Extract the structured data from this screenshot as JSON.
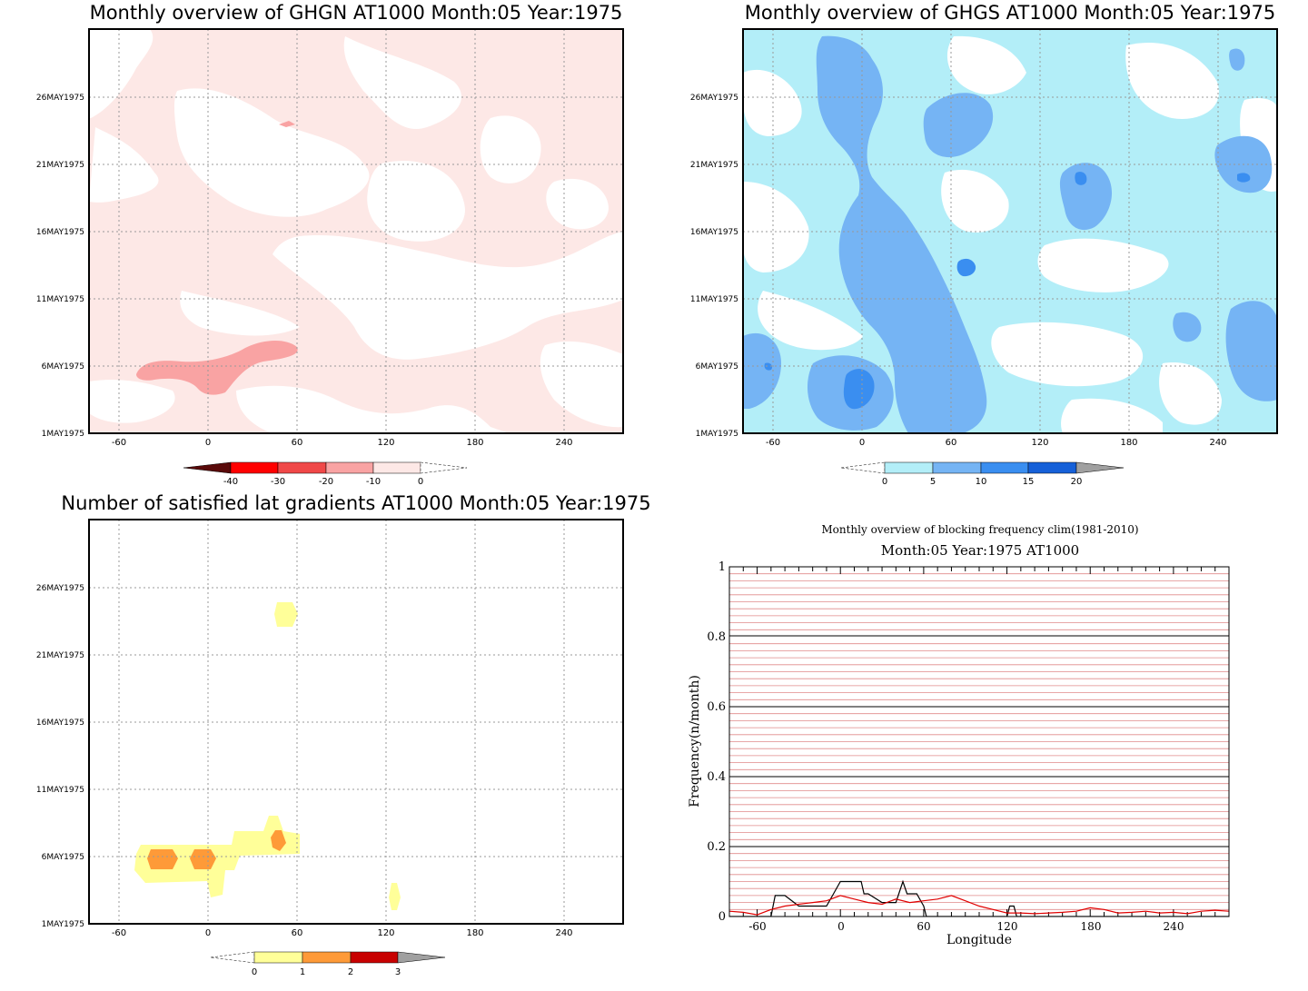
{
  "chart_data": [
    {
      "type": "heatmap",
      "title": "Monthly overview of GHGN AT1000 Month:05 Year:1975",
      "x_ticks": [
        "-60",
        "0",
        "60",
        "120",
        "180",
        "240"
      ],
      "y_ticks": [
        "1MAY1975",
        "6MAY1975",
        "11MAY1975",
        "16MAY1975",
        "21MAY1975",
        "26MAY1975"
      ],
      "xlim": [
        -80,
        280
      ],
      "ylim": [
        1,
        31
      ],
      "colorbar": {
        "labels": [
          "-40",
          "-30",
          "-20",
          "-10",
          "0"
        ],
        "colors": [
          "#5a0a0a",
          "#ff0000",
          "#f04848",
          "#f9a3a3",
          "#fde8e6"
        ]
      },
      "fill_color": "#fde8e6",
      "features": [
        {
          "level": "-20..-10",
          "lon": [
            -45,
            60
          ],
          "day": [
            4.5,
            7.5
          ]
        },
        {
          "level": "-20..-10",
          "lon": [
            48,
            55
          ],
          "day": [
            24,
            24.6
          ]
        }
      ]
    },
    {
      "type": "heatmap",
      "title": "Monthly overview of GHGS AT1000 Month:05 Year:1975",
      "x_ticks": [
        "-60",
        "0",
        "60",
        "120",
        "180",
        "240"
      ],
      "y_ticks": [
        "1MAY1975",
        "6MAY1975",
        "11MAY1975",
        "16MAY1975",
        "21MAY1975",
        "26MAY1975"
      ],
      "xlim": [
        -80,
        280
      ],
      "ylim": [
        1,
        31
      ],
      "colorbar": {
        "labels": [
          "0",
          "5",
          "10",
          "15",
          "20"
        ],
        "colors": [
          "#b3eef8",
          "#75b4f4",
          "#3a8ef0",
          "#1660d8",
          "#a0a0a0"
        ]
      },
      "features": [
        {
          "level": "10..15",
          "lon": [
            -10,
            5
          ],
          "day": [
            2.5,
            5
          ]
        },
        {
          "level": "10..15",
          "lon": [
            60,
            75
          ],
          "day": [
            13,
            14.5
          ]
        },
        {
          "level": "10..15",
          "lon": [
            140,
            150
          ],
          "day": [
            19.5,
            20.5
          ]
        },
        {
          "level": "10..15",
          "lon": [
            255,
            270
          ],
          "day": [
            19.8,
            20.5
          ]
        }
      ]
    },
    {
      "type": "heatmap",
      "title": "Number of satisfied lat gradients AT1000 Month:05 Year:1975",
      "x_ticks": [
        "-60",
        "0",
        "60",
        "120",
        "180",
        "240"
      ],
      "y_ticks": [
        "1MAY1975",
        "6MAY1975",
        "11MAY1975",
        "16MAY1975",
        "21MAY1975",
        "26MAY1975"
      ],
      "xlim": [
        -80,
        280
      ],
      "ylim": [
        1,
        31
      ],
      "colorbar": {
        "labels": [
          "0",
          "1",
          "2",
          "3"
        ],
        "colors": [
          "#ffff99",
          "#fe9a38",
          "#c80000",
          "#a0a0a0"
        ]
      },
      "features": [
        {
          "level": "0..1",
          "lon": [
            -50,
            62
          ],
          "day": [
            3.5,
            8
          ]
        },
        {
          "level": "1..2",
          "lon": [
            -38,
            -18
          ],
          "day": [
            5.3,
            6.7
          ]
        },
        {
          "level": "1..2",
          "lon": [
            -12,
            5
          ],
          "day": [
            5.3,
            6.7
          ]
        },
        {
          "level": "1..2",
          "lon": [
            43,
            52
          ],
          "day": [
            6.3,
            7.6
          ]
        },
        {
          "level": "0..1",
          "lon": [
            45,
            60
          ],
          "day": [
            23,
            24.8
          ]
        },
        {
          "level": "0..1",
          "lon": [
            123,
            130
          ],
          "day": [
            2.2,
            4
          ]
        }
      ]
    },
    {
      "type": "line",
      "title": "Monthly overview of blocking frequency clim(1981-2010)",
      "subtitle": "Month:05 Year:1975  AT1000",
      "xlabel": "Longitude",
      "ylabel": "Frequency(n/month)",
      "xlim": [
        -80,
        280
      ],
      "ylim": [
        0,
        1
      ],
      "x_ticks": [
        "-60",
        "0",
        "60",
        "120",
        "180",
        "240"
      ],
      "y_ticks": [
        "0",
        "0.2",
        "0.4",
        "0.6",
        "0.8",
        "1"
      ],
      "series": [
        {
          "color": "#000000",
          "x": [
            -80,
            -50,
            -47,
            -40,
            -30,
            -20,
            -10,
            -5,
            0,
            15,
            17,
            20,
            30,
            40,
            45,
            48,
            55,
            60,
            62,
            120,
            122,
            125,
            127,
            280
          ],
          "y": [
            0,
            0,
            0.06,
            0.06,
            0.03,
            0.03,
            0.03,
            0.065,
            0.1,
            0.1,
            0.065,
            0.065,
            0.04,
            0.04,
            0.1,
            0.065,
            0.065,
            0.03,
            0,
            0,
            0.03,
            0.03,
            0,
            0
          ]
        },
        {
          "color": "#e00000",
          "x": [
            -80,
            -70,
            -60,
            -50,
            -40,
            -30,
            -20,
            -10,
            0,
            10,
            20,
            30,
            40,
            50,
            60,
            70,
            80,
            90,
            100,
            110,
            120,
            130,
            140,
            150,
            160,
            170,
            180,
            190,
            200,
            210,
            220,
            230,
            240,
            250,
            260,
            270,
            280
          ],
          "y": [
            0.015,
            0.012,
            0.005,
            0.02,
            0.03,
            0.035,
            0.04,
            0.045,
            0.06,
            0.05,
            0.04,
            0.035,
            0.05,
            0.04,
            0.045,
            0.05,
            0.06,
            0.045,
            0.03,
            0.02,
            0.01,
            0.01,
            0.008,
            0.01,
            0.012,
            0.015,
            0.025,
            0.02,
            0.01,
            0.012,
            0.015,
            0.01,
            0.012,
            0.008,
            0.015,
            0.018,
            0.015
          ]
        }
      ]
    }
  ]
}
